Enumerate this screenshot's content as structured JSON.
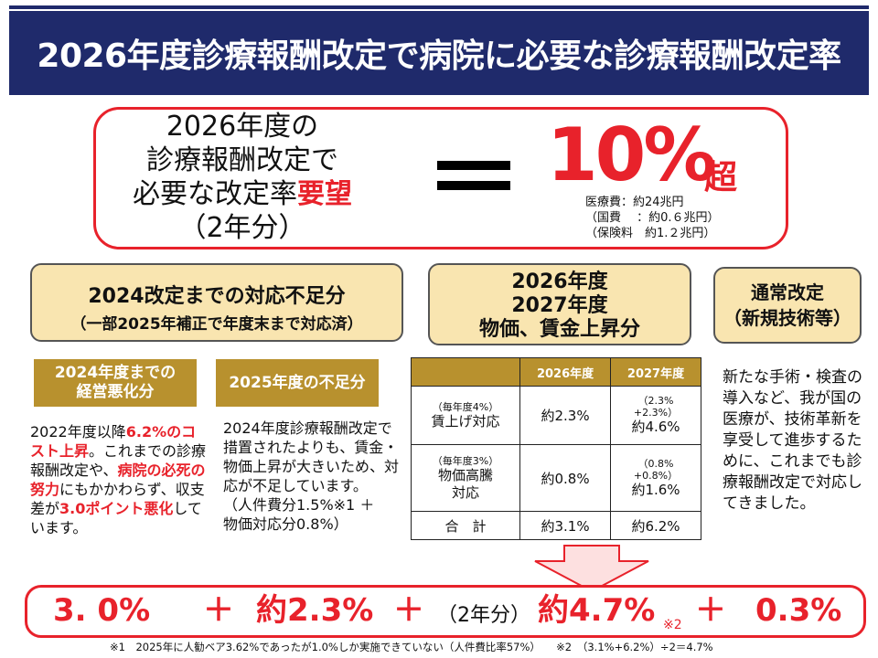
{
  "title": "2026年度診療報酬改定で病院に必要な診療報酬改定率",
  "main": {
    "left_lines": [
      "2026年度の",
      "診療報酬改定で",
      "必要な改定率"
    ],
    "left_red": "要望",
    "left_last": "（2年分）",
    "big_value": "10%",
    "big_suffix": "超",
    "notes": [
      "医療費：約24兆円",
      "（国費　 ：約0.６兆円）",
      "（保険料　約1.２兆円）"
    ]
  },
  "box1": {
    "title": "2024改定までの対応不足分",
    "subtitle": "（一部2025年補正で年度末まで対応済）"
  },
  "box2": {
    "lines": [
      "2026年度",
      "2027年度",
      "物価、賃金上昇分"
    ]
  },
  "box3": {
    "lines": [
      "通常改定",
      "（新規技術等）"
    ]
  },
  "gold1": {
    "lines": [
      "2024年度までの",
      "経営悪化分"
    ]
  },
  "gold2": {
    "label": "2025年度の不足分"
  },
  "text1": {
    "p1": "2022年度以降",
    "r1": "6.2%のコスト上昇",
    "p2": "。これまでの診療報酬改定や、",
    "r2": "病院の必死の努力",
    "p3": "にもかかわらず、収支差が",
    "r3": "3.0ポイント悪化",
    "p4": "しています。"
  },
  "text2": {
    "body": "2024年度診療報酬改定で措置されたよりも、賃金・物価上昇が大きいため、対応が不足しています。",
    "note1": "（人件費分1.5%※1 ＋",
    "note2": "物価対応分0.8%）"
  },
  "text3": "新たな手術・検査の導入など、我が国の医療が、技術革新を享受して進歩するために、これまでも診療報酬改定で対応してきました。",
  "table": {
    "headers": [
      "",
      "2026年度",
      "2027年度"
    ],
    "rows": [
      {
        "small": "（毎年度4%）",
        "label": "賃上げ対応",
        "c1": "約2.3%",
        "c2_small1": "（2.3%",
        "c2_small2": "+2.3%）",
        "c2": "約4.6%"
      },
      {
        "small": "（毎年度3%）",
        "label1": "物価高騰",
        "label2": "対応",
        "c1": "約0.8%",
        "c2_small1": "（0.8%",
        "c2_small2": "+0.8%）",
        "c2": "約1.6%"
      }
    ],
    "total": {
      "label": "合　計",
      "c1": "約3.1%",
      "c2": "約6.2%"
    }
  },
  "bottom": {
    "v1": "3. 0%",
    "plus1": "＋",
    "v2": "約2.3%",
    "plus2": "＋",
    "paren": "（2年分）",
    "v3": "約4.7%",
    "note": "※2",
    "plus3": "＋",
    "v4": "0.3%"
  },
  "footnote": "※1　2025年に人勧ベア3.62%であったが1.0%しか実施できていない（人件費比率57%）　　※2　（3.1%+6.2%）÷2＝4.7%",
  "colors": {
    "navy": "#1f2a6b",
    "red": "#e8222b",
    "gold": "#b8912e",
    "cream": "#f9e5b0"
  }
}
